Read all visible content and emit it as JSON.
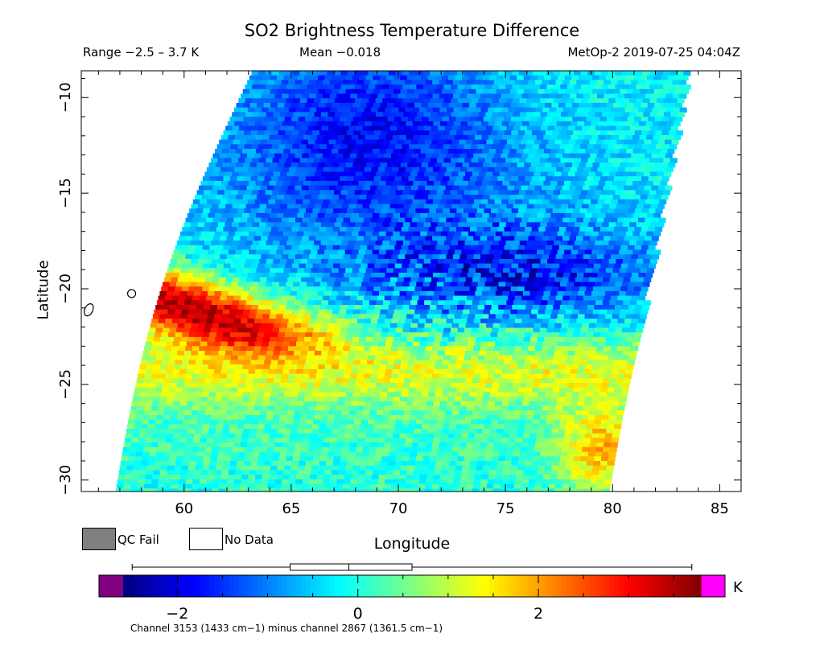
{
  "header": {
    "title": "SO2 Brightness Temperature Difference",
    "range": "Range −2.5 – 3.7 K",
    "mean": "Mean −0.018",
    "satellite": "MetOp-2 2019-07-25 04:04Z"
  },
  "legend": {
    "qc_fail": "QC Fail",
    "no_data": "No Data",
    "qc_fail_color": "#808080",
    "no_data_color": "#ffffff"
  },
  "colorbar": {
    "unit": "K",
    "min": -2.6,
    "max": 3.8,
    "ticks": [
      -2,
      0,
      2
    ],
    "tick_labels": [
      "−2",
      "0",
      "2"
    ],
    "under_color": "#800080",
    "over_color": "#ff00ff",
    "boxplot": {
      "whisker_low": -2.5,
      "q1": -0.75,
      "median": -0.1,
      "q3": 0.6,
      "whisker_high": 3.7
    }
  },
  "footnote": "Channel 3153 (1433 cm−1) minus channel 2867 (1361.5 cm−1)",
  "chart_data": {
    "type": "heatmap",
    "title": "SO2 Brightness Temperature Difference",
    "xlabel": "Longitude",
    "ylabel": "Latitude",
    "xlim": [
      55.2,
      86
    ],
    "ylim": [
      -30.6,
      -8.6
    ],
    "x_ticks": [
      60,
      65,
      70,
      75,
      80,
      85
    ],
    "y_ticks": [
      -10,
      -15,
      -20,
      -25,
      -30
    ],
    "swath": {
      "top_lon_range": [
        63.2,
        83.5
      ],
      "bottom_lon_range": [
        56.8,
        79.8
      ],
      "edge_curvature_lon": 1.6
    },
    "value_range": [
      -2.5,
      3.7
    ],
    "mean": -0.018,
    "features": [
      {
        "name": "strong positive band",
        "lon": 60.2,
        "lat": -20.6,
        "value": 3.6
      },
      {
        "name": "positive band",
        "lon": 62.5,
        "lat": -21.3,
        "value": 2.6
      },
      {
        "name": "positive band",
        "lon": 65.5,
        "lat": -22.0,
        "value": 1.8
      },
      {
        "name": "negative band north",
        "lon": 68.5,
        "lat": -10.5,
        "value": -1.9
      },
      {
        "name": "negative band center",
        "lon": 76.5,
        "lat": -19.3,
        "value": -1.7
      },
      {
        "name": "positive southeast",
        "lon": 79.2,
        "lat": -28.5,
        "value": 1.6
      },
      {
        "name": "mild positive south",
        "lon": 68.0,
        "lat": -24.5,
        "value": 0.9
      }
    ],
    "coastline": [
      {
        "name": "island-west",
        "lon": 55.55,
        "lat": -21.1
      },
      {
        "name": "island-east",
        "lon": 57.55,
        "lat": -20.25
      }
    ]
  }
}
